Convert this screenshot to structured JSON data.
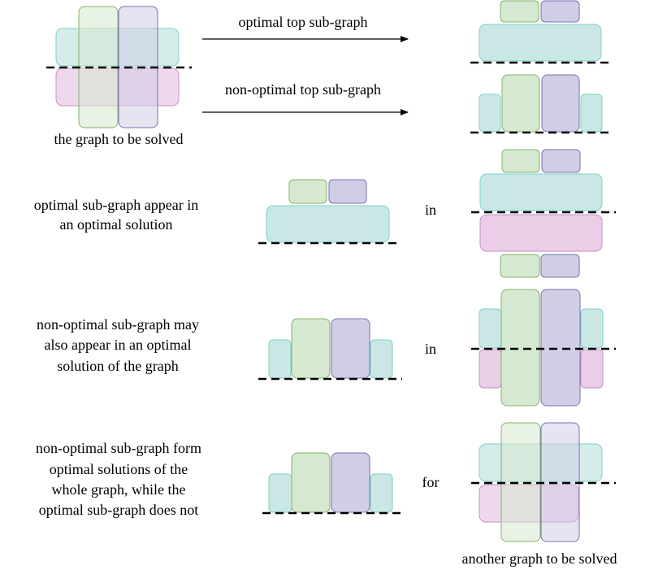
{
  "labels": {
    "graph_to_be_solved": "the graph to be solved",
    "optimal_top": "optimal top sub-graph",
    "nonoptimal_top": "non-optimal top sub-graph",
    "row2_line1": "optimal sub-graph appear in",
    "row2_line2": "an optimal solution",
    "row3_line1": "non-optimal sub-graph may",
    "row3_line2": "also appear in an optimal",
    "row3_line3": "solution of the graph",
    "row4_line1": "non-optimal sub-graph form",
    "row4_line2": "optimal solutions of the",
    "row4_line3": "whole graph, while the",
    "row4_line4": "optimal sub-graph does not",
    "in_1": "in",
    "in_2": "in",
    "for": "for",
    "another_graph": "another graph to be solved"
  },
  "colors": {
    "cyan_fill": "#c9e8e5",
    "cyan_stroke": "#7fcfc6",
    "pink_fill": "#ebcde8",
    "pink_stroke": "#c98fc5",
    "green_fill": "#d5e8d0",
    "green_stroke": "#82b366",
    "purple_fill": "#d0cee6",
    "purple_stroke": "#7c6fb0"
  }
}
